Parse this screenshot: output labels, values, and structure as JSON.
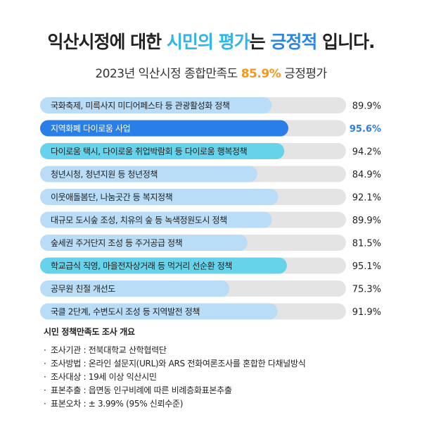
{
  "header": {
    "title_a": "익산시정에 대한 ",
    "title_b": "시민의 평가",
    "title_c": "는 ",
    "title_d": "긍정적",
    "title_e": " 입니다.",
    "subtitle_a": "2023년 익산시정 종합만족도 ",
    "subtitle_pct": "85.9%",
    "subtitle_b": " 긍정평가"
  },
  "colors": {
    "track": "#e4e4e4",
    "bar_default": "#b9dcf7",
    "bar_top": "#2a7ee8",
    "bar_second": "#66d3ea",
    "value_highlight": "#2e7be0",
    "accent_orange": "#f39a1e"
  },
  "chart_data": {
    "type": "bar",
    "orientation": "horizontal",
    "categories": [
      "국화축제, 미륵사지 미디어페스타 등 관광활성화 정책",
      "지역화폐 다이로움 사업",
      "다이로움 택시, 다이로움 취업박람회 등 다이로움 행복정책",
      "청년시청, 청년지원 등 청년정책",
      "이웃애돌봄단, 나눔곳간 등 복지정책",
      "대규모 도시숲 조성, 치유의 숲 등 녹색정원도시 정책",
      "숲세권 주거단지 조성 등 주거공급 정책",
      "학교급식 직영, 마을전자상거래 등 먹거리 선순환 정책",
      "공무원 친절 개선도",
      "국클 2단계, 수변도시 조성 등 지역발전 정책"
    ],
    "values": [
      89.9,
      95.6,
      94.2,
      84.9,
      92.1,
      89.9,
      81.5,
      95.1,
      75.3,
      91.9
    ],
    "value_labels": [
      "89.9%",
      "95.6%",
      "94.2%",
      "84.9%",
      "92.1%",
      "89.9%",
      "81.5%",
      "95.1%",
      "75.3%",
      "91.9%"
    ],
    "highlight": {
      "top": 1,
      "second": [
        2,
        7
      ]
    },
    "unit": "%"
  },
  "survey": {
    "heading": "시민 정책만족도 조사 개요",
    "items": [
      "조사기관 : 전북대학교 산학협력단",
      "조사방법 : 온라인 설문지(URL)와 ARS 전화여론조사를 혼합한 다채널방식",
      "조사대상 : 19세 이상 익산시민",
      "표본추출 : 읍면동 인구비례에 따른 비례층화표본추출",
      "표본오차 : ± 3.99% (95% 신뢰수준)"
    ],
    "bullet": "·"
  }
}
